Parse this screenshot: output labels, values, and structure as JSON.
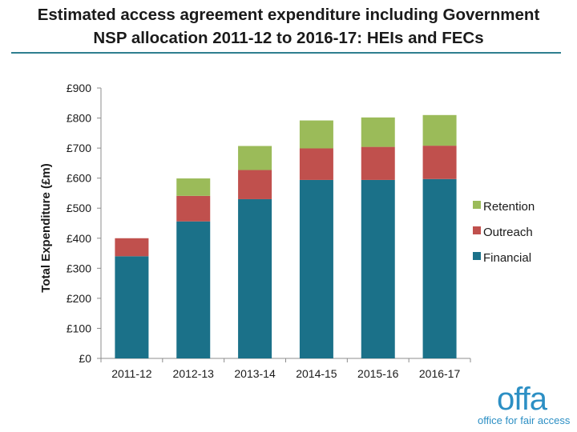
{
  "slide": {
    "title_line1": "Estimated access agreement expenditure including Government",
    "title_line2": "NSP allocation 2011-12 to 2016-17: HEIs and FECs"
  },
  "logo": {
    "wordmark": "offa",
    "tagline": "office for fair access",
    "color": "#2c8fc4"
  },
  "chart_data": {
    "type": "bar",
    "stacked": true,
    "title": "",
    "xlabel": "",
    "ylabel": "Total Expenditure  (£m)",
    "categories": [
      "2011-12",
      "2012-13",
      "2013-14",
      "2014-15",
      "2015-16",
      "2016-17"
    ],
    "ylim": [
      0,
      900
    ],
    "yticks": [
      {
        "value": 0,
        "label": "£0"
      },
      {
        "value": 100,
        "label": "£100"
      },
      {
        "value": 200,
        "label": "£200"
      },
      {
        "value": 300,
        "label": "£300"
      },
      {
        "value": 400,
        "label": "£400"
      },
      {
        "value": 500,
        "label": "£500"
      },
      {
        "value": 600,
        "label": "£600"
      },
      {
        "value": 700,
        "label": "£700"
      },
      {
        "value": 800,
        "label": "£800"
      },
      {
        "value": 900,
        "label": "£900"
      }
    ],
    "series": [
      {
        "name": "Financial",
        "color": "#1b7189",
        "values": [
          340,
          456,
          530,
          594,
          594,
          597
        ]
      },
      {
        "name": "Outreach",
        "color": "#c0504d",
        "values": [
          60,
          85,
          97,
          105,
          110,
          111
        ]
      },
      {
        "name": "Retention",
        "color": "#9bbb59",
        "values": [
          0,
          58,
          80,
          93,
          98,
          102
        ]
      }
    ],
    "legend_order": [
      "Retention",
      "Outreach",
      "Financial"
    ],
    "legend_position": "right",
    "grid": false
  }
}
